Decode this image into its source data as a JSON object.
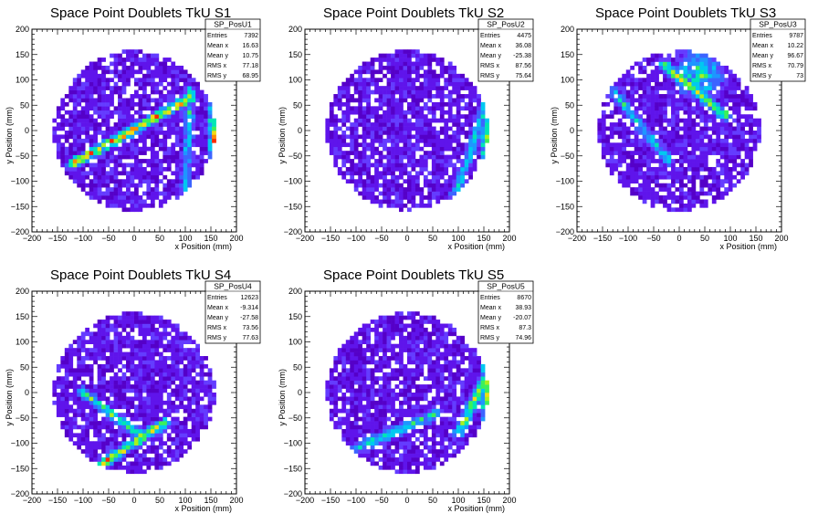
{
  "chart_data": [
    {
      "type": "heatmap",
      "title": "Space Point Doublets TkU S1",
      "xlabel": "x Position (mm)",
      "ylabel": "y Position (mm)",
      "xlim": [
        -200,
        200
      ],
      "ylim": [
        -200,
        200
      ],
      "x_ticks": [
        "−200",
        "−150",
        "−100",
        "−50",
        "0",
        "50",
        "100",
        "150",
        "200"
      ],
      "y_ticks": [
        "200",
        "150",
        "100",
        "50",
        "0",
        "−50",
        "−100",
        "−150",
        "−200"
      ],
      "detector_radius_mm": 160,
      "stats": {
        "name": "SP_PosU1",
        "rows": [
          {
            "label": "Entries",
            "value": "7392"
          },
          {
            "label": "Mean x",
            "value": "16.63"
          },
          {
            "label": "Mean y",
            "value": "10.75"
          },
          {
            "label": "RMS x",
            "value": "77.18"
          },
          {
            "label": "RMS y",
            "value": "68.95"
          }
        ]
      },
      "features": [
        {
          "kind": "line",
          "from": [
            -120,
            -65
          ],
          "to": [
            110,
            65
          ],
          "intensity": 0.85
        },
        {
          "kind": "line",
          "from": [
            100,
            -130
          ],
          "to": [
            110,
            80
          ],
          "intensity": 0.4
        },
        {
          "kind": "edge",
          "side": "right",
          "intensity": 0.95
        }
      ]
    },
    {
      "type": "heatmap",
      "title": "Space Point Doublets TkU S2",
      "xlabel": "x Position (mm)",
      "ylabel": "y Position (mm)",
      "xlim": [
        -200,
        200
      ],
      "ylim": [
        -200,
        200
      ],
      "x_ticks": [
        "−200",
        "−150",
        "−100",
        "−50",
        "0",
        "50",
        "100",
        "150",
        "200"
      ],
      "y_ticks": [
        "200",
        "150",
        "100",
        "50",
        "0",
        "−50",
        "−100",
        "−150",
        "−200"
      ],
      "detector_radius_mm": 160,
      "stats": {
        "name": "SP_PosU2",
        "rows": [
          {
            "label": "Entries",
            "value": "4475"
          },
          {
            "label": "Mean x",
            "value": "36.08"
          },
          {
            "label": "Mean y",
            "value": "-25.38"
          },
          {
            "label": "RMS x",
            "value": "87.56"
          },
          {
            "label": "RMS y",
            "value": "75.64"
          }
        ]
      },
      "features": [
        {
          "kind": "line",
          "from": [
            90,
            -140
          ],
          "to": [
            150,
            40
          ],
          "intensity": 0.45
        },
        {
          "kind": "edge",
          "side": "right",
          "intensity": 0.9
        }
      ]
    },
    {
      "type": "heatmap",
      "title": "Space Point Doublets TkU S3",
      "xlabel": "x Position (mm)",
      "ylabel": "y Position (mm)",
      "xlim": [
        -200,
        200
      ],
      "ylim": [
        -200,
        200
      ],
      "x_ticks": [
        "−200",
        "−150",
        "−100",
        "−50",
        "0",
        "50",
        "100",
        "150",
        "200"
      ],
      "y_ticks": [
        "200",
        "150",
        "100",
        "50",
        "0",
        "−50",
        "−100",
        "−150",
        "−200"
      ],
      "detector_radius_mm": 160,
      "stats": {
        "name": "SP_PosU3",
        "rows": [
          {
            "label": "Entries",
            "value": "9787"
          },
          {
            "label": "Mean x",
            "value": "10.22"
          },
          {
            "label": "Mean y",
            "value": "96.67"
          },
          {
            "label": "RMS x",
            "value": "70.79"
          },
          {
            "label": "RMS y",
            "value": "73"
          }
        ]
      },
      "features": [
        {
          "kind": "line",
          "from": [
            -30,
            130
          ],
          "to": [
            90,
            30
          ],
          "intensity": 0.7
        },
        {
          "kind": "line",
          "from": [
            -140,
            90
          ],
          "to": [
            -20,
            -60
          ],
          "intensity": 0.45
        },
        {
          "kind": "blob",
          "center": [
            40,
            110
          ],
          "radius": 60,
          "intensity": 0.6
        }
      ]
    },
    {
      "type": "heatmap",
      "title": "Space Point Doublets TkU S4",
      "xlabel": "x Position (mm)",
      "ylabel": "y Position (mm)",
      "xlim": [
        -200,
        200
      ],
      "ylim": [
        -200,
        200
      ],
      "x_ticks": [
        "−200",
        "−150",
        "−100",
        "−50",
        "0",
        "50",
        "100",
        "150",
        "200"
      ],
      "y_ticks": [
        "200",
        "150",
        "100",
        "50",
        "0",
        "−50",
        "−100",
        "−150",
        "−200"
      ],
      "detector_radius_mm": 160,
      "stats": {
        "name": "SP_PosU4",
        "rows": [
          {
            "label": "Entries",
            "value": "12623"
          },
          {
            "label": "Mean x",
            "value": "-9.314"
          },
          {
            "label": "Mean y",
            "value": "-27.58"
          },
          {
            "label": "RMS x",
            "value": "73.56"
          },
          {
            "label": "RMS y",
            "value": "77.63"
          }
        ]
      },
      "features": [
        {
          "kind": "line",
          "from": [
            -70,
            -145
          ],
          "to": [
            60,
            -60
          ],
          "intensity": 0.75
        },
        {
          "kind": "line",
          "from": [
            -100,
            0
          ],
          "to": [
            20,
            -90
          ],
          "intensity": 0.55
        }
      ]
    },
    {
      "type": "heatmap",
      "title": "Space Point Doublets TkU S5",
      "xlabel": "x Position (mm)",
      "ylabel": "y Position (mm)",
      "xlim": [
        -200,
        200
      ],
      "ylim": [
        -200,
        200
      ],
      "x_ticks": [
        "−200",
        "−150",
        "−100",
        "−50",
        "0",
        "50",
        "100",
        "150",
        "200"
      ],
      "y_ticks": [
        "200",
        "150",
        "100",
        "50",
        "0",
        "−50",
        "−100",
        "−150",
        "−200"
      ],
      "detector_radius_mm": 160,
      "stats": {
        "name": "SP_PosU5",
        "rows": [
          {
            "label": "Entries",
            "value": "8670"
          },
          {
            "label": "Mean x",
            "value": "38.93"
          },
          {
            "label": "Mean y",
            "value": "-20.07"
          },
          {
            "label": "RMS x",
            "value": "87.3"
          },
          {
            "label": "RMS y",
            "value": "74.96"
          }
        ]
      },
      "features": [
        {
          "kind": "line",
          "from": [
            100,
            -80
          ],
          "to": [
            160,
            40
          ],
          "intensity": 0.7
        },
        {
          "kind": "line",
          "from": [
            60,
            -40
          ],
          "to": [
            -120,
            -120
          ],
          "intensity": 0.5
        },
        {
          "kind": "edge",
          "side": "right",
          "intensity": 0.8
        }
      ]
    }
  ]
}
